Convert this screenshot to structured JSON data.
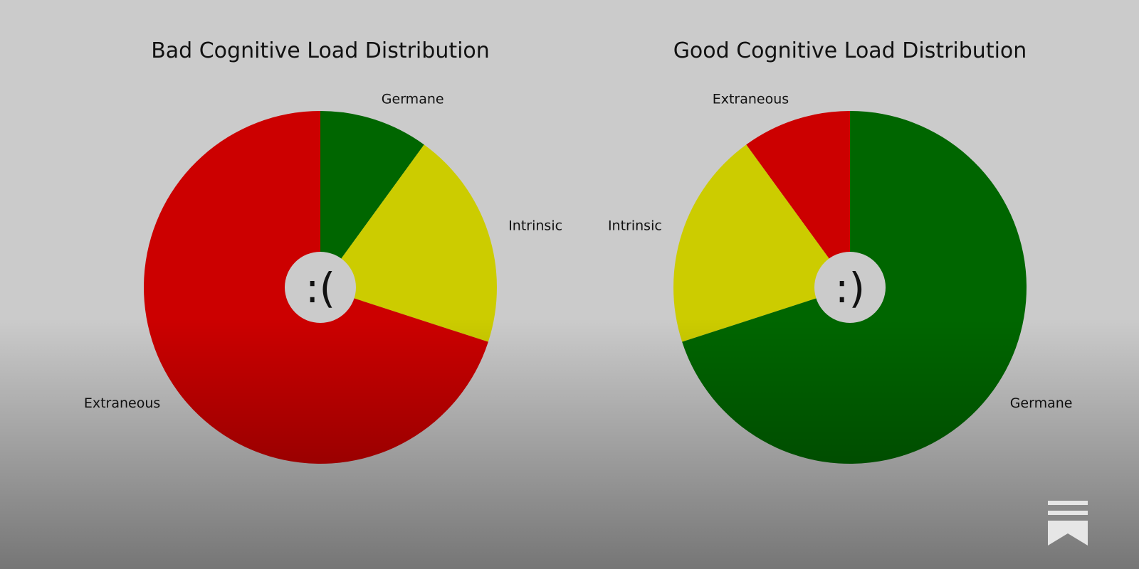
{
  "colors": {
    "background_top": "#cbcbcb",
    "background_bottom": "#777777"
  },
  "logo": {
    "icon": "bookmark-logo-icon",
    "color": "#e6e6e6"
  },
  "chart_data": [
    {
      "type": "pie",
      "title": "Bad Cognitive Load Distribution",
      "center_text": ":(",
      "start_angle_deg": 90,
      "direction": "clockwise",
      "slices": [
        {
          "label": "Germane",
          "value": 10,
          "color": "#006600"
        },
        {
          "label": "Intrinsic",
          "value": 20,
          "color": "#cccc00"
        },
        {
          "label": "Extraneous",
          "value": 70,
          "color": "#cc0000"
        }
      ]
    },
    {
      "type": "pie",
      "title": "Good Cognitive Load Distribution",
      "center_text": ":)",
      "start_angle_deg": 90,
      "direction": "counterclockwise",
      "slices": [
        {
          "label": "Extraneous",
          "value": 10,
          "color": "#cc0000"
        },
        {
          "label": "Intrinsic",
          "value": 20,
          "color": "#cccc00"
        },
        {
          "label": "Germane",
          "value": 70,
          "color": "#006600"
        }
      ]
    }
  ]
}
